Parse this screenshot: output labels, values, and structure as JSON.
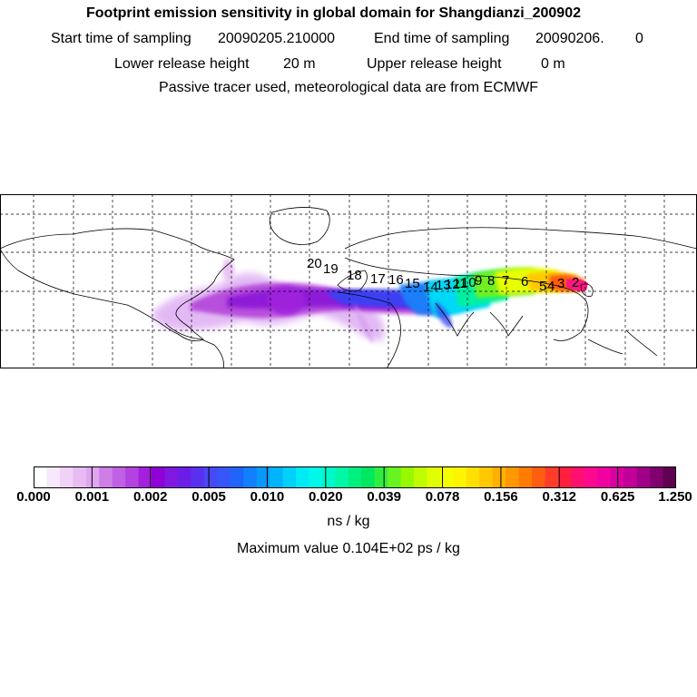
{
  "header": {
    "title": "Footprint emission sensitivity in global domain for Shangdianzi_200902",
    "start_label": "Start time of sampling",
    "start_value": "20090205.210000",
    "end_label": "End time of sampling",
    "end_value": "20090206.",
    "end_extra": "0",
    "lower_label": "Lower release height",
    "lower_value": "20 m",
    "upper_label": "Upper release height",
    "upper_value": "0 m",
    "tracer_note": "Passive tracer used, meteorological data are from ECMWF"
  },
  "map": {
    "trajectory_labels": [
      "20",
      "19",
      "18",
      "17",
      "16",
      "15",
      "14",
      "13",
      "12",
      "11",
      "10",
      "9",
      "8",
      "7",
      "6",
      "5",
      "4",
      "3",
      "2"
    ]
  },
  "colorbar": {
    "ticks": [
      "0.000",
      "0.001",
      "0.002",
      "0.005",
      "0.010",
      "0.020",
      "0.039",
      "0.078",
      "0.156",
      "0.312",
      "0.625",
      "1.250"
    ],
    "unit": "ns / kg",
    "colors": [
      "#ffffff",
      "#f7e8fb",
      "#f0d2f7",
      "#e8bcf3",
      "#e0a6ef",
      "#cf7ee8",
      "#c060e4",
      "#b342e0",
      "#a420dc",
      "#9000d8",
      "#8018e0",
      "#6c1ee8",
      "#5a30f0",
      "#4848f4",
      "#3656f8",
      "#2064fa",
      "#1080fc",
      "#0898fc",
      "#00b4fc",
      "#00d0fa",
      "#00eaf6",
      "#00f8e8",
      "#00f8c8",
      "#00f8a8",
      "#00f080",
      "#00e860",
      "#30ee40",
      "#68f420",
      "#98f800",
      "#c0fc00",
      "#e0ff00",
      "#f4ff00",
      "#fff400",
      "#ffe000",
      "#ffc800",
      "#ffb000",
      "#ff9800",
      "#ff7c00",
      "#ff5e10",
      "#ff3c28",
      "#ff2040",
      "#ff1070",
      "#ff0890",
      "#f000a0",
      "#d800a0",
      "#c00098",
      "#a00088",
      "#800070",
      "#600050"
    ]
  },
  "max_value_text": "Maximum value  0.104E+02 ps / kg"
}
